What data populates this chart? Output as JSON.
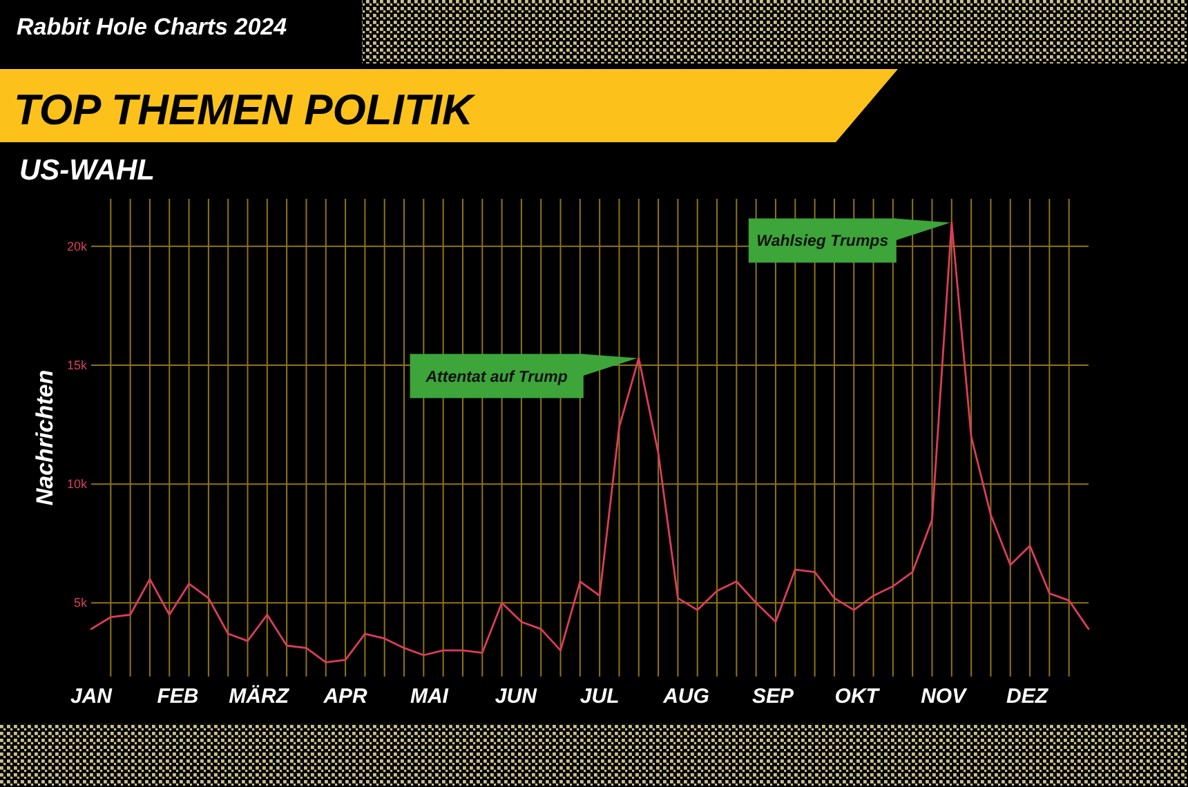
{
  "chart_data": {
    "type": "line",
    "title": "TOP THEMEN POLITIK",
    "subtitle": "US-WAHL",
    "ylabel": "Nachrichten",
    "annotations": [
      "Rabbit Hole Charts 2024",
      {
        "text": "Attentat auf Trump",
        "x": "2024-07-15",
        "y": 15300
      },
      {
        "text": "Wahlsieg Trumps",
        "x": "2024-11-04",
        "y": 21000
      }
    ],
    "x": [
      "2024-01-01",
      "2024-01-08",
      "2024-01-15",
      "2024-01-22",
      "2024-01-29",
      "2024-02-05",
      "2024-02-12",
      "2024-02-19",
      "2024-02-26",
      "2024-03-04",
      "2024-03-11",
      "2024-03-18",
      "2024-03-25",
      "2024-04-01",
      "2024-04-08",
      "2024-04-15",
      "2024-04-22",
      "2024-04-29",
      "2024-05-06",
      "2024-05-13",
      "2024-05-20",
      "2024-05-27",
      "2024-06-03",
      "2024-06-10",
      "2024-06-17",
      "2024-06-24",
      "2024-07-01",
      "2024-07-08",
      "2024-07-15",
      "2024-07-22",
      "2024-07-29",
      "2024-08-05",
      "2024-08-12",
      "2024-08-19",
      "2024-08-26",
      "2024-09-02",
      "2024-09-09",
      "2024-09-16",
      "2024-09-23",
      "2024-09-30",
      "2024-10-07",
      "2024-10-14",
      "2024-10-21",
      "2024-10-28",
      "2024-11-04",
      "2024-11-11",
      "2024-11-18",
      "2024-11-25",
      "2024-12-02",
      "2024-12-09",
      "2024-12-16",
      "2024-12-23"
    ],
    "series": [
      {
        "color": "#dc3d5c",
        "values": [
          3900,
          4400,
          4500,
          6000,
          4500,
          5800,
          5200,
          3700,
          3400,
          4500,
          3200,
          3100,
          2500,
          2600,
          3700,
          3500,
          3100,
          2800,
          3000,
          3000,
          2900,
          5000,
          4200,
          3900,
          3000,
          5900,
          5300,
          12400,
          15300,
          11300,
          5200,
          4700,
          5500,
          5900,
          5000,
          4200,
          6400,
          6300,
          5200,
          4700,
          5300,
          5700,
          6300,
          8500,
          21000,
          12000,
          8700,
          6600,
          7400,
          5400,
          5100,
          3900
        ]
      }
    ],
    "xlim": [
      "2024-01-01",
      "2024-12-23"
    ],
    "xticks": [
      {
        "value": "2024-01-01",
        "label": "JAN"
      },
      {
        "value": "2024-02-01",
        "label": "FEB"
      },
      {
        "value": "2024-03-01",
        "label": "MÄRZ"
      },
      {
        "value": "2024-04-01",
        "label": "APR"
      },
      {
        "value": "2024-05-01",
        "label": "MAI"
      },
      {
        "value": "2024-06-01",
        "label": "JUN"
      },
      {
        "value": "2024-07-01",
        "label": "JUL"
      },
      {
        "value": "2024-08-01",
        "label": "AUG"
      },
      {
        "value": "2024-09-01",
        "label": "SEP"
      },
      {
        "value": "2024-10-01",
        "label": "OKT"
      },
      {
        "value": "2024-11-01",
        "label": "NOV"
      },
      {
        "value": "2024-12-01",
        "label": "DEZ"
      },
      {
        "value": "2024-01-08",
        "label": null
      },
      {
        "value": "2024-01-15",
        "label": null
      },
      {
        "value": "2024-01-22",
        "label": null
      },
      {
        "value": "2024-01-29",
        "label": null
      },
      {
        "value": "2024-02-05",
        "label": null
      },
      {
        "value": "2024-02-12",
        "label": null
      },
      {
        "value": "2024-02-19",
        "label": null
      },
      {
        "value": "2024-02-26",
        "label": null
      },
      {
        "value": "2024-03-04",
        "label": null
      },
      {
        "value": "2024-03-11",
        "label": null
      },
      {
        "value": "2024-03-18",
        "label": null
      },
      {
        "value": "2024-03-25",
        "label": null
      },
      {
        "value": "2024-04-01",
        "label": null
      },
      {
        "value": "2024-04-08",
        "label": null
      },
      {
        "value": "2024-04-15",
        "label": null
      },
      {
        "value": "2024-04-22",
        "label": null
      },
      {
        "value": "2024-04-29",
        "label": null
      },
      {
        "value": "2024-05-06",
        "label": null
      },
      {
        "value": "2024-05-13",
        "label": null
      },
      {
        "value": "2024-05-20",
        "label": null
      },
      {
        "value": "2024-05-27",
        "label": null
      },
      {
        "value": "2024-06-03",
        "label": null
      },
      {
        "value": "2024-06-10",
        "label": null
      },
      {
        "value": "2024-06-17",
        "label": null
      },
      {
        "value": "2024-06-24",
        "label": null
      },
      {
        "value": "2024-07-01",
        "label": null
      },
      {
        "value": "2024-07-08",
        "label": null
      },
      {
        "value": "2024-07-15",
        "label": null
      },
      {
        "value": "2024-07-22",
        "label": null
      },
      {
        "value": "2024-07-29",
        "label": null
      },
      {
        "value": "2024-08-05",
        "label": null
      },
      {
        "value": "2024-08-12",
        "label": null
      },
      {
        "value": "2024-08-19",
        "label": null
      },
      {
        "value": "2024-08-26",
        "label": null
      },
      {
        "value": "2024-09-02",
        "label": null
      },
      {
        "value": "2024-09-09",
        "label": null
      },
      {
        "value": "2024-09-16",
        "label": null
      },
      {
        "value": "2024-09-23",
        "label": null
      },
      {
        "value": "2024-09-30",
        "label": null
      },
      {
        "value": "2024-10-07",
        "label": null
      },
      {
        "value": "2024-10-14",
        "label": null
      },
      {
        "value": "2024-10-21",
        "label": null
      },
      {
        "value": "2024-10-28",
        "label": null
      },
      {
        "value": "2024-11-04",
        "label": null
      },
      {
        "value": "2024-11-11",
        "label": null
      },
      {
        "value": "2024-11-18",
        "label": null
      },
      {
        "value": "2024-11-25",
        "label": null
      },
      {
        "value": "2024-12-02",
        "label": null
      },
      {
        "value": "2024-12-09",
        "label": null
      },
      {
        "value": "2024-12-16",
        "label": null
      }
    ],
    "ylim": [
      1900,
      22000
    ],
    "yticks": [
      {
        "value": 5000,
        "label": "5k"
      },
      {
        "value": 10000,
        "label": "10k"
      },
      {
        "value": 15000,
        "label": "15k"
      },
      {
        "value": 20000,
        "label": "20k"
      }
    ],
    "grid": true
  }
}
